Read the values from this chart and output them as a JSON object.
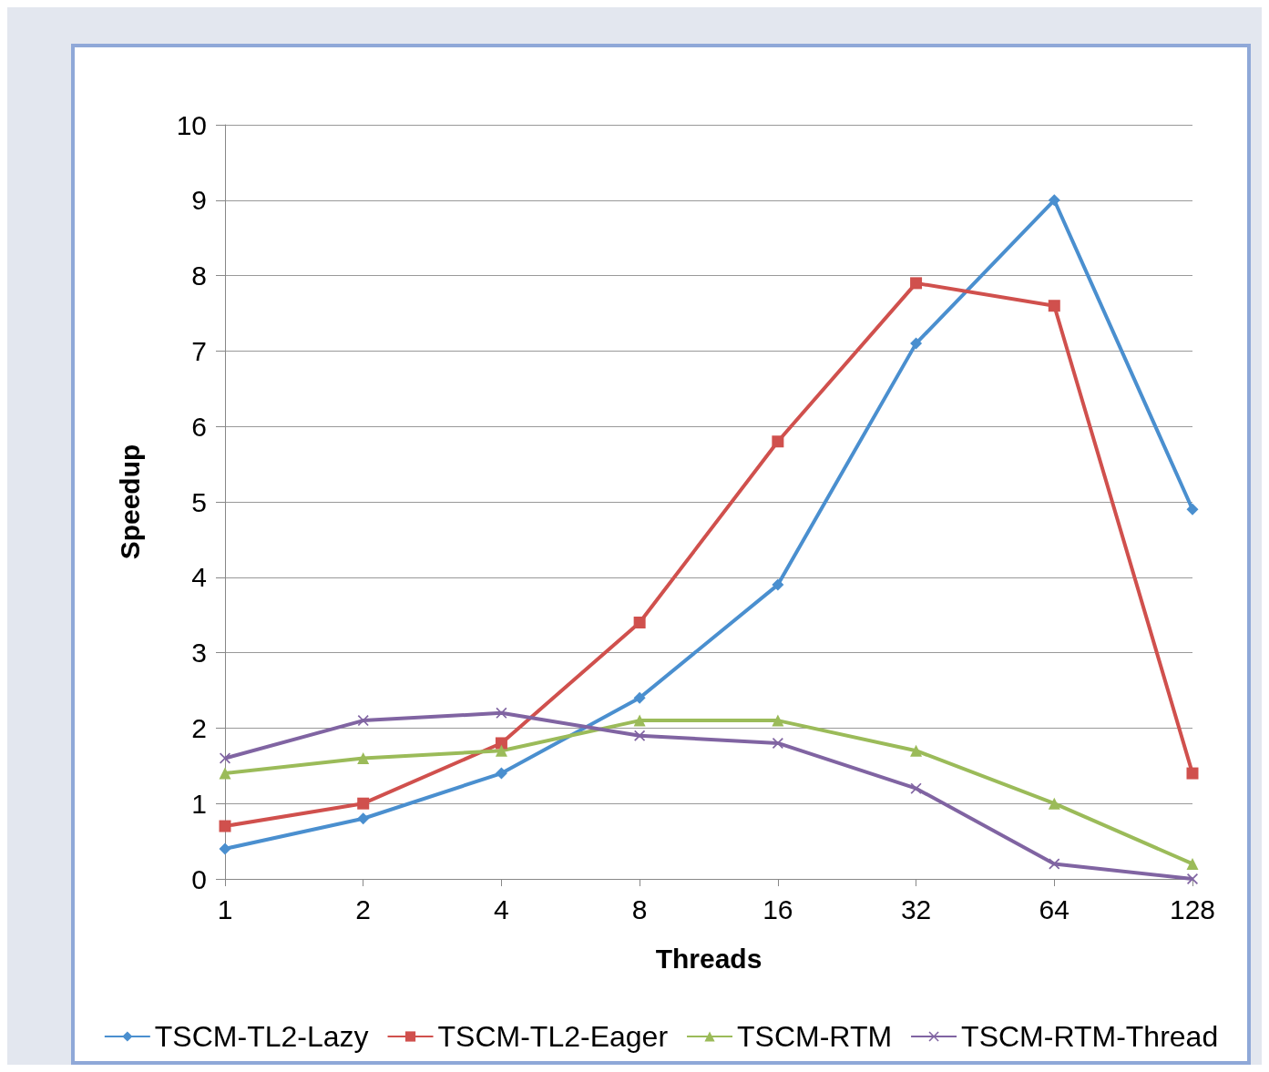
{
  "chart_data": {
    "type": "line",
    "xlabel": "Threads",
    "ylabel": "Speedup",
    "categories": [
      "1",
      "2",
      "4",
      "8",
      "16",
      "32",
      "64",
      "128"
    ],
    "series": [
      {
        "name": "TSCM-TL2-Lazy",
        "color": "#4a8fcf",
        "marker": "diamond",
        "values": [
          0.4,
          0.8,
          1.4,
          2.4,
          3.9,
          7.1,
          9.0,
          4.9
        ]
      },
      {
        "name": "TSCM-TL2-Eager",
        "color": "#d0504d",
        "marker": "square",
        "values": [
          0.7,
          1.0,
          1.8,
          3.4,
          5.8,
          7.9,
          7.6,
          1.4
        ]
      },
      {
        "name": "TSCM-RTM",
        "color": "#9bbb59",
        "marker": "triangle",
        "values": [
          1.4,
          1.6,
          1.7,
          2.1,
          2.1,
          1.7,
          1.0,
          0.2
        ]
      },
      {
        "name": "TSCM-RTM-Thread",
        "color": "#8064a2",
        "marker": "cross",
        "values": [
          1.6,
          2.1,
          2.2,
          1.9,
          1.8,
          1.2,
          0.2,
          0.0
        ]
      }
    ],
    "ylim": [
      0,
      10
    ],
    "yticks": [
      0,
      1,
      2,
      3,
      4,
      5,
      6,
      7,
      8,
      9,
      10
    ],
    "grid": "y",
    "legend": "bottom",
    "line_style": "solid"
  }
}
